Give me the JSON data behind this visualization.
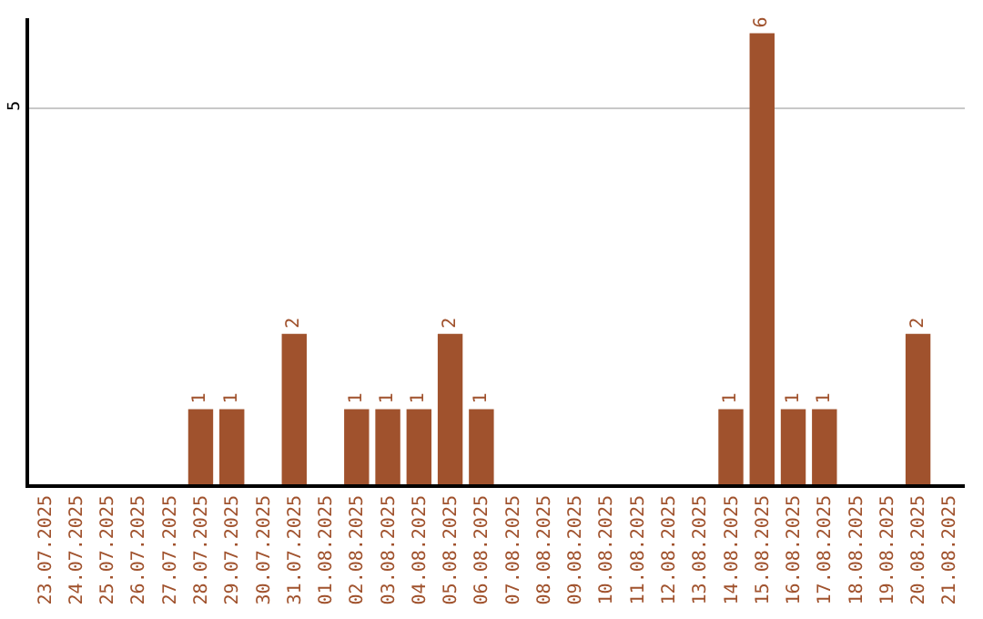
{
  "chart_data": {
    "type": "bar",
    "categories": [
      "23.07.2025",
      "24.07.2025",
      "25.07.2025",
      "26.07.2025",
      "27.07.2025",
      "28.07.2025",
      "29.07.2025",
      "30.07.2025",
      "31.07.2025",
      "01.08.2025",
      "02.08.2025",
      "03.08.2025",
      "04.08.2025",
      "05.08.2025",
      "06.08.2025",
      "07.08.2025",
      "08.08.2025",
      "09.08.2025",
      "10.08.2025",
      "11.08.2025",
      "12.08.2025",
      "13.08.2025",
      "14.08.2025",
      "15.08.2025",
      "16.08.2025",
      "17.08.2025",
      "18.08.2025",
      "19.08.2025",
      "20.08.2025",
      "21.08.2025"
    ],
    "values": [
      0,
      0,
      0,
      0,
      0,
      1,
      1,
      0,
      2,
      0,
      1,
      1,
      1,
      2,
      1,
      0,
      0,
      0,
      0,
      0,
      0,
      0,
      1,
      6,
      1,
      1,
      0,
      0,
      2,
      0
    ],
    "value_labels": [
      null,
      null,
      null,
      null,
      null,
      "1",
      "1",
      null,
      "2",
      null,
      "1",
      "1",
      "1",
      "2",
      "1",
      null,
      null,
      null,
      null,
      null,
      null,
      null,
      "1",
      "6",
      "1",
      "1",
      null,
      null,
      "2",
      null
    ],
    "color": "#a0522d",
    "ylim": [
      0,
      6.2
    ],
    "yticks": [
      5
    ],
    "grid": "y",
    "legend": false
  }
}
